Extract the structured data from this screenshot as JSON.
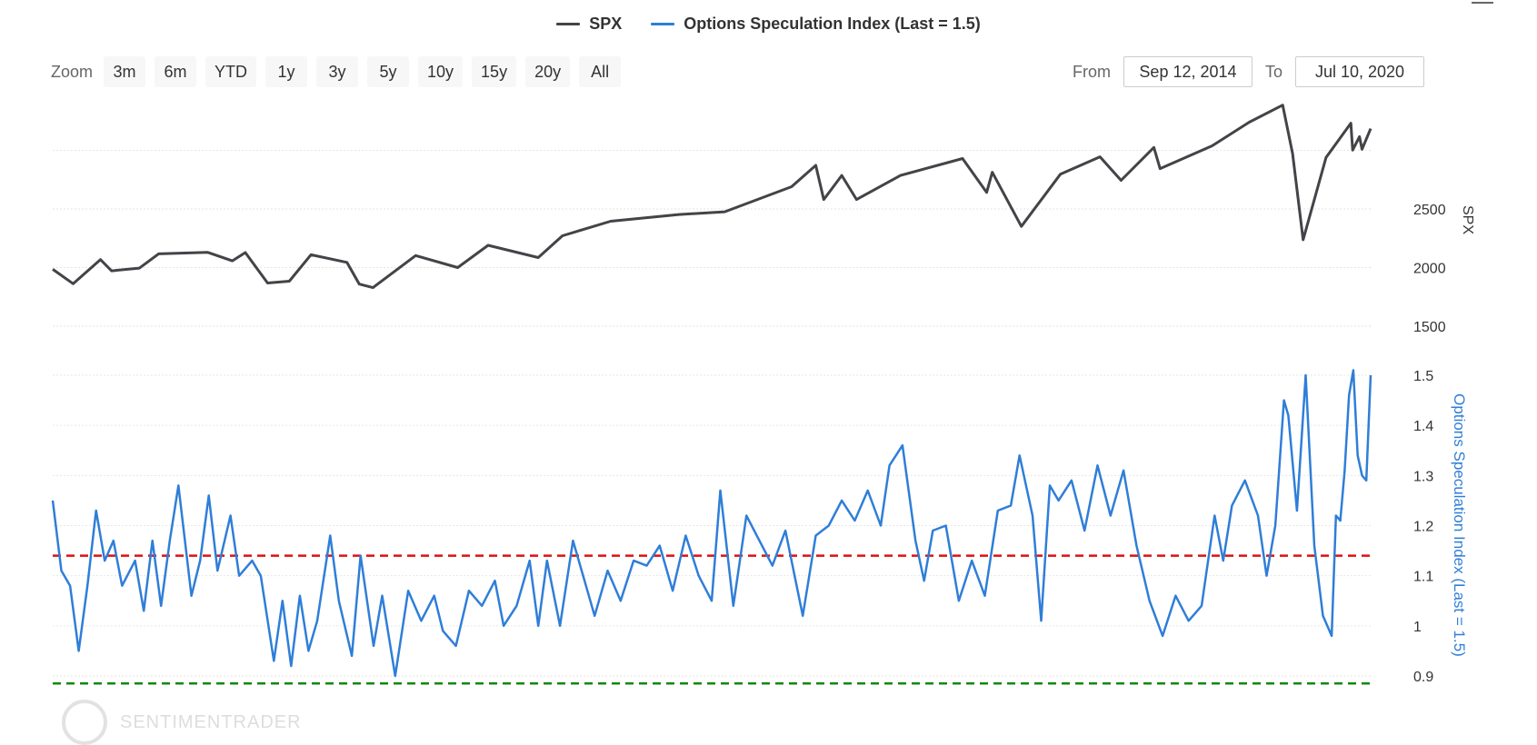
{
  "legend": {
    "items": [
      {
        "label": "SPX",
        "color": "#434348"
      },
      {
        "label": "Options Speculation Index (Last = 1.5)",
        "color": "#2f7ed8"
      }
    ]
  },
  "toolbar": {
    "zoom_label": "Zoom",
    "zoom_buttons": [
      "3m",
      "6m",
      "YTD",
      "1y",
      "3y",
      "5y",
      "10y",
      "15y",
      "20y",
      "All"
    ]
  },
  "range": {
    "from_label": "From",
    "from_value": "Sep 12, 2014",
    "to_label": "To",
    "to_value": "Jul 10, 2020"
  },
  "watermark": {
    "text": "SENTIMENTRADER"
  },
  "chart_data": {
    "type": "line",
    "x_range": [
      "2014-09-12",
      "2020-07-10"
    ],
    "spx_axis": {
      "label": "SPX",
      "ticks": [
        1500,
        2000,
        2500
      ]
    },
    "osi_axis": {
      "label": "Options Speculation Index (Last = 1.5)",
      "ticks": [
        0.9,
        1,
        1.1,
        1.2,
        1.3,
        1.4,
        1.5
      ],
      "partial_tick": "0.8"
    },
    "reference_lines": [
      {
        "series": "Options Speculation Index",
        "value": 1.14,
        "color": "#dd1111",
        "style": "dashed"
      },
      {
        "series": "Options Speculation Index",
        "value": 0.885,
        "color": "#118811",
        "style": "dashed"
      }
    ],
    "series": [
      {
        "name": "SPX",
        "color": "#434348",
        "points": [
          [
            "2014-09-12",
            1985
          ],
          [
            "2014-10-15",
            1862
          ],
          [
            "2014-11-28",
            2068
          ],
          [
            "2014-12-16",
            1972
          ],
          [
            "2015-01-30",
            1995
          ],
          [
            "2015-03-02",
            2117
          ],
          [
            "2015-05-20",
            2130
          ],
          [
            "2015-06-29",
            2057
          ],
          [
            "2015-07-20",
            2128
          ],
          [
            "2015-08-25",
            1868
          ],
          [
            "2015-09-29",
            1884
          ],
          [
            "2015-11-03",
            2109
          ],
          [
            "2015-12-31",
            2044
          ],
          [
            "2016-01-20",
            1859
          ],
          [
            "2016-02-11",
            1829
          ],
          [
            "2016-04-20",
            2102
          ],
          [
            "2016-06-27",
            2000
          ],
          [
            "2016-08-15",
            2190
          ],
          [
            "2016-11-04",
            2085
          ],
          [
            "2016-12-13",
            2271
          ],
          [
            "2017-03-01",
            2395
          ],
          [
            "2017-06-19",
            2453
          ],
          [
            "2017-09-01",
            2476
          ],
          [
            "2017-12-18",
            2690
          ],
          [
            "2018-01-26",
            2872
          ],
          [
            "2018-02-08",
            2581
          ],
          [
            "2018-03-09",
            2786
          ],
          [
            "2018-04-02",
            2581
          ],
          [
            "2018-06-12",
            2786
          ],
          [
            "2018-09-20",
            2930
          ],
          [
            "2018-10-29",
            2641
          ],
          [
            "2018-11-07",
            2813
          ],
          [
            "2018-12-24",
            2351
          ],
          [
            "2019-02-25",
            2796
          ],
          [
            "2019-04-30",
            2945
          ],
          [
            "2019-06-03",
            2744
          ],
          [
            "2019-07-26",
            3025
          ],
          [
            "2019-08-05",
            2844
          ],
          [
            "2019-10-28",
            3039
          ],
          [
            "2019-12-27",
            3240
          ],
          [
            "2020-02-19",
            3386
          ],
          [
            "2020-03-06",
            2972
          ],
          [
            "2020-03-23",
            2237
          ],
          [
            "2020-04-29",
            2939
          ],
          [
            "2020-06-08",
            3232
          ],
          [
            "2020-06-11",
            3002
          ],
          [
            "2020-06-22",
            3117
          ],
          [
            "2020-06-26",
            3009
          ],
          [
            "2020-07-10",
            3185
          ]
        ]
      },
      {
        "name": "Options Speculation Index",
        "color": "#2f7ed8",
        "points": [
          [
            "2014-09-12",
            1.25
          ],
          [
            "2014-09-26",
            1.11
          ],
          [
            "2014-10-10",
            1.08
          ],
          [
            "2014-10-24",
            0.95
          ],
          [
            "2014-11-07",
            1.08
          ],
          [
            "2014-11-21",
            1.23
          ],
          [
            "2014-12-05",
            1.13
          ],
          [
            "2014-12-19",
            1.17
          ],
          [
            "2015-01-02",
            1.08
          ],
          [
            "2015-01-23",
            1.13
          ],
          [
            "2015-02-06",
            1.03
          ],
          [
            "2015-02-20",
            1.17
          ],
          [
            "2015-03-06",
            1.04
          ],
          [
            "2015-03-20",
            1.17
          ],
          [
            "2015-04-03",
            1.28
          ],
          [
            "2015-04-24",
            1.06
          ],
          [
            "2015-05-08",
            1.13
          ],
          [
            "2015-05-22",
            1.26
          ],
          [
            "2015-06-05",
            1.11
          ],
          [
            "2015-06-26",
            1.22
          ],
          [
            "2015-07-10",
            1.1
          ],
          [
            "2015-07-31",
            1.13
          ],
          [
            "2015-08-14",
            1.1
          ],
          [
            "2015-09-04",
            0.93
          ],
          [
            "2015-09-18",
            1.05
          ],
          [
            "2015-10-02",
            0.92
          ],
          [
            "2015-10-16",
            1.06
          ],
          [
            "2015-10-30",
            0.95
          ],
          [
            "2015-11-13",
            1.01
          ],
          [
            "2015-12-04",
            1.18
          ],
          [
            "2015-12-18",
            1.05
          ],
          [
            "2016-01-08",
            0.94
          ],
          [
            "2016-01-22",
            1.14
          ],
          [
            "2016-02-12",
            0.96
          ],
          [
            "2016-02-26",
            1.06
          ],
          [
            "2016-03-18",
            0.9
          ],
          [
            "2016-04-08",
            1.07
          ],
          [
            "2016-04-29",
            1.01
          ],
          [
            "2016-05-20",
            1.06
          ],
          [
            "2016-06-03",
            0.99
          ],
          [
            "2016-06-24",
            0.96
          ],
          [
            "2016-07-15",
            1.07
          ],
          [
            "2016-08-05",
            1.04
          ],
          [
            "2016-08-26",
            1.09
          ],
          [
            "2016-09-09",
            1.0
          ],
          [
            "2016-09-30",
            1.04
          ],
          [
            "2016-10-21",
            1.13
          ],
          [
            "2016-11-04",
            1.0
          ],
          [
            "2016-11-18",
            1.13
          ],
          [
            "2016-12-09",
            1.0
          ],
          [
            "2016-12-30",
            1.17
          ],
          [
            "2017-01-20",
            1.08
          ],
          [
            "2017-02-03",
            1.02
          ],
          [
            "2017-02-24",
            1.11
          ],
          [
            "2017-03-17",
            1.05
          ],
          [
            "2017-04-07",
            1.13
          ],
          [
            "2017-04-28",
            1.12
          ],
          [
            "2017-05-19",
            1.16
          ],
          [
            "2017-06-09",
            1.07
          ],
          [
            "2017-06-30",
            1.18
          ],
          [
            "2017-07-21",
            1.1
          ],
          [
            "2017-08-11",
            1.05
          ],
          [
            "2017-08-25",
            1.27
          ],
          [
            "2017-09-15",
            1.04
          ],
          [
            "2017-10-06",
            1.22
          ],
          [
            "2017-10-27",
            1.17
          ],
          [
            "2017-11-17",
            1.12
          ],
          [
            "2017-12-08",
            1.19
          ],
          [
            "2018-01-05",
            1.02
          ],
          [
            "2018-01-26",
            1.18
          ],
          [
            "2018-02-16",
            1.2
          ],
          [
            "2018-03-09",
            1.25
          ],
          [
            "2018-03-30",
            1.21
          ],
          [
            "2018-04-20",
            1.27
          ],
          [
            "2018-05-11",
            1.2
          ],
          [
            "2018-05-25",
            1.32
          ],
          [
            "2018-06-15",
            1.36
          ],
          [
            "2018-07-06",
            1.17
          ],
          [
            "2018-07-20",
            1.09
          ],
          [
            "2018-08-03",
            1.19
          ],
          [
            "2018-08-24",
            1.2
          ],
          [
            "2018-09-14",
            1.05
          ],
          [
            "2018-10-05",
            1.13
          ],
          [
            "2018-10-26",
            1.06
          ],
          [
            "2018-11-16",
            1.23
          ],
          [
            "2018-12-07",
            1.24
          ],
          [
            "2018-12-21",
            1.34
          ],
          [
            "2019-01-11",
            1.22
          ],
          [
            "2019-01-25",
            1.01
          ],
          [
            "2019-02-08",
            1.28
          ],
          [
            "2019-02-22",
            1.25
          ],
          [
            "2019-03-15",
            1.29
          ],
          [
            "2019-04-05",
            1.19
          ],
          [
            "2019-04-26",
            1.32
          ],
          [
            "2019-05-17",
            1.22
          ],
          [
            "2019-06-07",
            1.31
          ],
          [
            "2019-06-28",
            1.16
          ],
          [
            "2019-07-19",
            1.05
          ],
          [
            "2019-08-09",
            0.98
          ],
          [
            "2019-08-30",
            1.06
          ],
          [
            "2019-09-20",
            1.01
          ],
          [
            "2019-10-11",
            1.04
          ],
          [
            "2019-11-01",
            1.22
          ],
          [
            "2019-11-15",
            1.13
          ],
          [
            "2019-11-29",
            1.24
          ],
          [
            "2019-12-20",
            1.29
          ],
          [
            "2020-01-10",
            1.22
          ],
          [
            "2020-01-24",
            1.1
          ],
          [
            "2020-02-07",
            1.2
          ],
          [
            "2020-02-21",
            1.45
          ],
          [
            "2020-02-28",
            1.42
          ],
          [
            "2020-03-13",
            1.23
          ],
          [
            "2020-03-27",
            1.5
          ],
          [
            "2020-04-10",
            1.16
          ],
          [
            "2020-04-24",
            1.02
          ],
          [
            "2020-05-08",
            0.98
          ],
          [
            "2020-05-15",
            1.22
          ],
          [
            "2020-05-22",
            1.21
          ],
          [
            "2020-05-29",
            1.31
          ],
          [
            "2020-06-05",
            1.46
          ],
          [
            "2020-06-12",
            1.51
          ],
          [
            "2020-06-19",
            1.34
          ],
          [
            "2020-06-26",
            1.3
          ],
          [
            "2020-07-03",
            1.29
          ],
          [
            "2020-07-10",
            1.5
          ]
        ]
      }
    ]
  }
}
